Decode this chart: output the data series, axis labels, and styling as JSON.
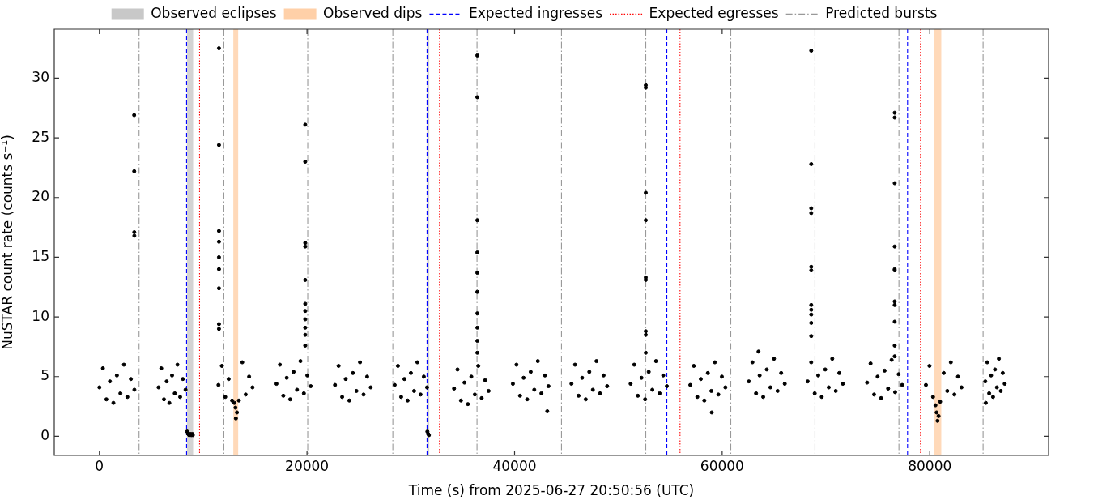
{
  "chart_data": {
    "type": "scatter",
    "xlabel": "Time (s) from 2025-06-27 20:50:56 (UTC)",
    "ylabel": "NuSTAR count rate (counts s⁻¹)",
    "xlim": [
      -4350,
      91450
    ],
    "ylim": [
      -1.6,
      34.1
    ],
    "xticks": [
      0,
      20000,
      40000,
      60000,
      80000
    ],
    "yticks": [
      0,
      5,
      10,
      15,
      20,
      25,
      30
    ],
    "color": "#000000",
    "marker": "circle",
    "legend": "top",
    "x": [
      0,
      337,
      674,
      1011,
      1348,
      1685,
      2022,
      2359,
      2696,
      3033,
      3370,
      3350,
      3355,
      3360,
      3365,
      5700,
      5960,
      6220,
      6480,
      6740,
      7000,
      7260,
      7520,
      7780,
      8040,
      8300,
      8450,
      8550,
      8650,
      8750,
      8850,
      8950,
      9000,
      11470,
      11798,
      12126,
      12454,
      12782,
      13110,
      13438,
      13766,
      14094,
      14422,
      14750,
      13000,
      13150,
      13250,
      11520,
      11520,
      11520,
      11520,
      11520,
      11520,
      11520,
      11520,
      11520,
      17060,
      17390,
      17720,
      18050,
      18380,
      18710,
      19040,
      19370,
      19700,
      20030,
      20360,
      19830,
      19830,
      19830,
      19830,
      19830,
      19830,
      19830,
      19830,
      19830,
      19830,
      19830,
      22700,
      23044,
      23388,
      23732,
      24076,
      24420,
      24764,
      25108,
      25452,
      25796,
      26140,
      28450,
      28762,
      29074,
      29386,
      29698,
      30010,
      30322,
      30634,
      30946,
      31258,
      31570,
      31600,
      31680,
      31750,
      34170,
      34503,
      34836,
      35169,
      35502,
      35835,
      36168,
      36501,
      36834,
      37167,
      37500,
      36410,
      36410,
      36410,
      36410,
      36410,
      36410,
      36410,
      36410,
      36410,
      36410,
      39840,
      40183,
      40526,
      40869,
      41212,
      41555,
      41898,
      42241,
      42584,
      42927,
      43270,
      43150,
      45480,
      45824,
      46168,
      46512,
      46856,
      47200,
      47544,
      47888,
      48232,
      48576,
      48920,
      51180,
      51529,
      51878,
      52227,
      52576,
      52925,
      53274,
      53623,
      53972,
      54321,
      54670,
      52640,
      52640,
      52640,
      52640,
      52640,
      52640,
      52640,
      52640,
      52640,
      56930,
      57268,
      57606,
      57944,
      58282,
      58620,
      58958,
      59296,
      59634,
      59972,
      60310,
      59000,
      62570,
      62916,
      63262,
      63608,
      63954,
      64300,
      64646,
      64992,
      65338,
      65684,
      66030,
      63500,
      68240,
      68578,
      68916,
      69254,
      69592,
      69930,
      70268,
      70606,
      70944,
      71282,
      71620,
      68580,
      68580,
      68580,
      68580,
      68580,
      68580,
      68580,
      68580,
      68580,
      68580,
      68580,
      73960,
      74298,
      74636,
      74974,
      75312,
      75650,
      75988,
      76326,
      76664,
      77002,
      77340,
      76620,
      76620,
      76620,
      76620,
      76620,
      76620,
      76620,
      76620,
      76620,
      76620,
      76620,
      79630,
      79973,
      80316,
      80659,
      81002,
      81345,
      81688,
      82031,
      82374,
      82717,
      83060,
      80550,
      80750,
      80850,
      85350,
      85537,
      85724,
      85911,
      86098,
      86285,
      86472,
      86659,
      86846,
      87033,
      87220,
      85400
    ],
    "values": [
      4.1,
      5.7,
      3.1,
      4.6,
      2.8,
      5.1,
      3.6,
      6.0,
      3.3,
      4.8,
      3.9,
      26.9,
      22.2,
      17.1,
      16.8,
      4.1,
      5.7,
      3.1,
      4.6,
      2.8,
      5.1,
      3.6,
      6.0,
      3.3,
      4.8,
      3.9,
      0.4,
      0.2,
      0.1,
      0.2,
      0.1,
      0.2,
      0.1,
      4.3,
      5.9,
      3.3,
      4.8,
      3.0,
      2.4,
      3.0,
      6.2,
      3.5,
      5.0,
      4.1,
      2.8,
      1.5,
      2.0,
      32.5,
      24.4,
      17.2,
      16.3,
      15.0,
      14.0,
      12.4,
      9.4,
      9.0,
      4.4,
      6.0,
      3.4,
      4.9,
      3.1,
      5.4,
      3.9,
      6.3,
      3.6,
      5.1,
      4.2,
      26.1,
      23.0,
      16.2,
      15.9,
      13.1,
      11.1,
      10.5,
      9.8,
      9.1,
      8.5,
      7.6,
      4.3,
      5.9,
      3.3,
      4.8,
      3.0,
      5.3,
      3.8,
      6.2,
      3.5,
      5.0,
      4.1,
      4.3,
      5.9,
      3.3,
      4.8,
      3.0,
      5.3,
      3.8,
      6.2,
      3.5,
      5.0,
      4.1,
      0.4,
      0.2,
      0.1,
      4.0,
      5.6,
      3.0,
      4.5,
      2.7,
      5.0,
      3.5,
      5.9,
      3.2,
      4.7,
      3.8,
      31.9,
      28.4,
      18.1,
      15.4,
      13.7,
      12.1,
      10.3,
      9.1,
      8.0,
      7.0,
      4.4,
      6.0,
      3.4,
      4.9,
      3.1,
      5.4,
      3.9,
      6.3,
      3.6,
      5.1,
      4.2,
      2.1,
      4.4,
      6.0,
      3.4,
      4.9,
      3.1,
      5.4,
      3.9,
      6.3,
      3.6,
      5.1,
      4.2,
      4.4,
      6.0,
      3.4,
      4.9,
      3.1,
      5.4,
      3.9,
      6.3,
      3.6,
      5.1,
      4.2,
      29.4,
      29.2,
      20.4,
      18.1,
      13.3,
      13.1,
      8.8,
      8.5,
      7.0,
      4.3,
      5.9,
      3.3,
      4.8,
      3.0,
      5.3,
      3.8,
      6.2,
      3.5,
      5.0,
      4.1,
      2.0,
      4.6,
      6.2,
      3.6,
      5.1,
      3.3,
      5.6,
      4.1,
      6.5,
      3.8,
      5.3,
      4.4,
      7.1,
      4.6,
      6.2,
      3.6,
      5.1,
      3.3,
      5.6,
      4.1,
      6.5,
      3.8,
      5.3,
      4.4,
      32.3,
      22.8,
      19.1,
      18.7,
      14.2,
      13.9,
      11.0,
      10.6,
      10.2,
      9.5,
      8.4,
      4.5,
      6.1,
      3.5,
      5.0,
      3.2,
      5.5,
      4.0,
      6.4,
      3.7,
      5.2,
      4.3,
      27.1,
      26.7,
      21.2,
      15.9,
      14.0,
      13.9,
      11.3,
      11.0,
      9.6,
      7.6,
      6.7,
      4.3,
      5.9,
      3.3,
      2.0,
      2.9,
      5.3,
      3.8,
      6.2,
      3.5,
      5.0,
      4.1,
      2.6,
      1.3,
      1.7,
      4.6,
      6.2,
      3.6,
      5.1,
      3.3,
      5.6,
      4.1,
      6.5,
      3.8,
      5.3,
      4.4,
      2.8
    ],
    "bands": [
      {
        "axis": "x",
        "from": 8430,
        "to": 9030,
        "label": "Observed eclipses",
        "color": "#c8c8c8"
      },
      {
        "axis": "x",
        "from": 31570,
        "to": 31780,
        "color": "#c8c8c8"
      },
      {
        "axis": "x",
        "from": 12900,
        "to": 13370,
        "label": "Observed dips",
        "color": "#ffd0a8"
      },
      {
        "axis": "x",
        "from": 80410,
        "to": 81110,
        "color": "#ffd0a8"
      }
    ],
    "ref_lines": [
      {
        "axis": "x",
        "value": 8400,
        "label": "Expected ingresses",
        "color": "#0000ff",
        "line_style": "dashed"
      },
      {
        "axis": "x",
        "value": 31570,
        "color": "#0000ff",
        "line_style": "dashed"
      },
      {
        "axis": "x",
        "value": 54670,
        "color": "#0000ff",
        "line_style": "dashed"
      },
      {
        "axis": "x",
        "value": 77860,
        "color": "#0000ff",
        "line_style": "dashed"
      },
      {
        "axis": "x",
        "value": 9650,
        "label": "Expected egresses",
        "color": "#ff0000",
        "line_style": "dotted"
      },
      {
        "axis": "x",
        "value": 32770,
        "color": "#ff0000",
        "line_style": "dotted"
      },
      {
        "axis": "x",
        "value": 55940,
        "color": "#ff0000",
        "line_style": "dotted"
      },
      {
        "axis": "x",
        "value": 79110,
        "color": "#ff0000",
        "line_style": "dotted"
      },
      {
        "axis": "x",
        "value": 3820,
        "label": "Predicted bursts",
        "color": "#999999",
        "line_style": "dashdot"
      },
      {
        "axis": "x",
        "value": 11990,
        "color": "#999999",
        "line_style": "dashdot"
      },
      {
        "axis": "x",
        "value": 20070,
        "color": "#999999",
        "line_style": "dashdot"
      },
      {
        "axis": "x",
        "value": 28270,
        "color": "#999999",
        "line_style": "dashdot"
      },
      {
        "axis": "x",
        "value": 36380,
        "color": "#999999",
        "line_style": "dashdot"
      },
      {
        "axis": "x",
        "value": 44520,
        "color": "#999999",
        "line_style": "dashdot"
      },
      {
        "axis": "x",
        "value": 52640,
        "color": "#999999",
        "line_style": "dashdot"
      },
      {
        "axis": "x",
        "value": 60830,
        "color": "#999999",
        "line_style": "dashdot"
      },
      {
        "axis": "x",
        "value": 68940,
        "color": "#999999",
        "line_style": "dashdot"
      },
      {
        "axis": "x",
        "value": 77030,
        "color": "#999999",
        "line_style": "dashdot"
      },
      {
        "axis": "x",
        "value": 85140,
        "color": "#999999",
        "line_style": "dashdot"
      }
    ]
  }
}
